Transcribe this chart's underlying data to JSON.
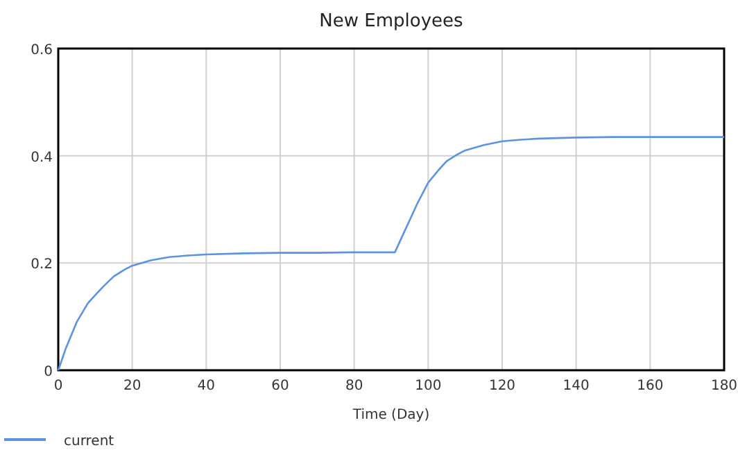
{
  "chart_data": {
    "type": "line",
    "title": "New Employees",
    "xlabel": "Time (Day)",
    "x": [
      0,
      2,
      5,
      8,
      10,
      12,
      15,
      18,
      20,
      25,
      30,
      35,
      40,
      50,
      60,
      70,
      80,
      91,
      93,
      95,
      97,
      100,
      103,
      105,
      108,
      110,
      115,
      120,
      125,
      130,
      140,
      150,
      160,
      170,
      180
    ],
    "series": [
      {
        "name": "current",
        "color": "#5b93e0",
        "values": [
          0,
          0.04,
          0.09,
          0.125,
          0.14,
          0.155,
          0.175,
          0.188,
          0.195,
          0.205,
          0.211,
          0.214,
          0.216,
          0.218,
          0.219,
          0.219,
          0.22,
          0.22,
          0.25,
          0.28,
          0.31,
          0.35,
          0.375,
          0.39,
          0.403,
          0.41,
          0.42,
          0.427,
          0.43,
          0.432,
          0.434,
          0.435,
          0.435,
          0.435,
          0.435
        ]
      }
    ],
    "xlim": [
      0,
      180
    ],
    "xticks": [
      0,
      20,
      40,
      60,
      80,
      100,
      120,
      140,
      160,
      180
    ],
    "ylim": [
      0,
      0.6
    ],
    "yticks": [
      0,
      0.2,
      0.4,
      0.6
    ],
    "grid": true,
    "legend": "bottom left",
    "marker": "none",
    "line_style": "solid"
  }
}
